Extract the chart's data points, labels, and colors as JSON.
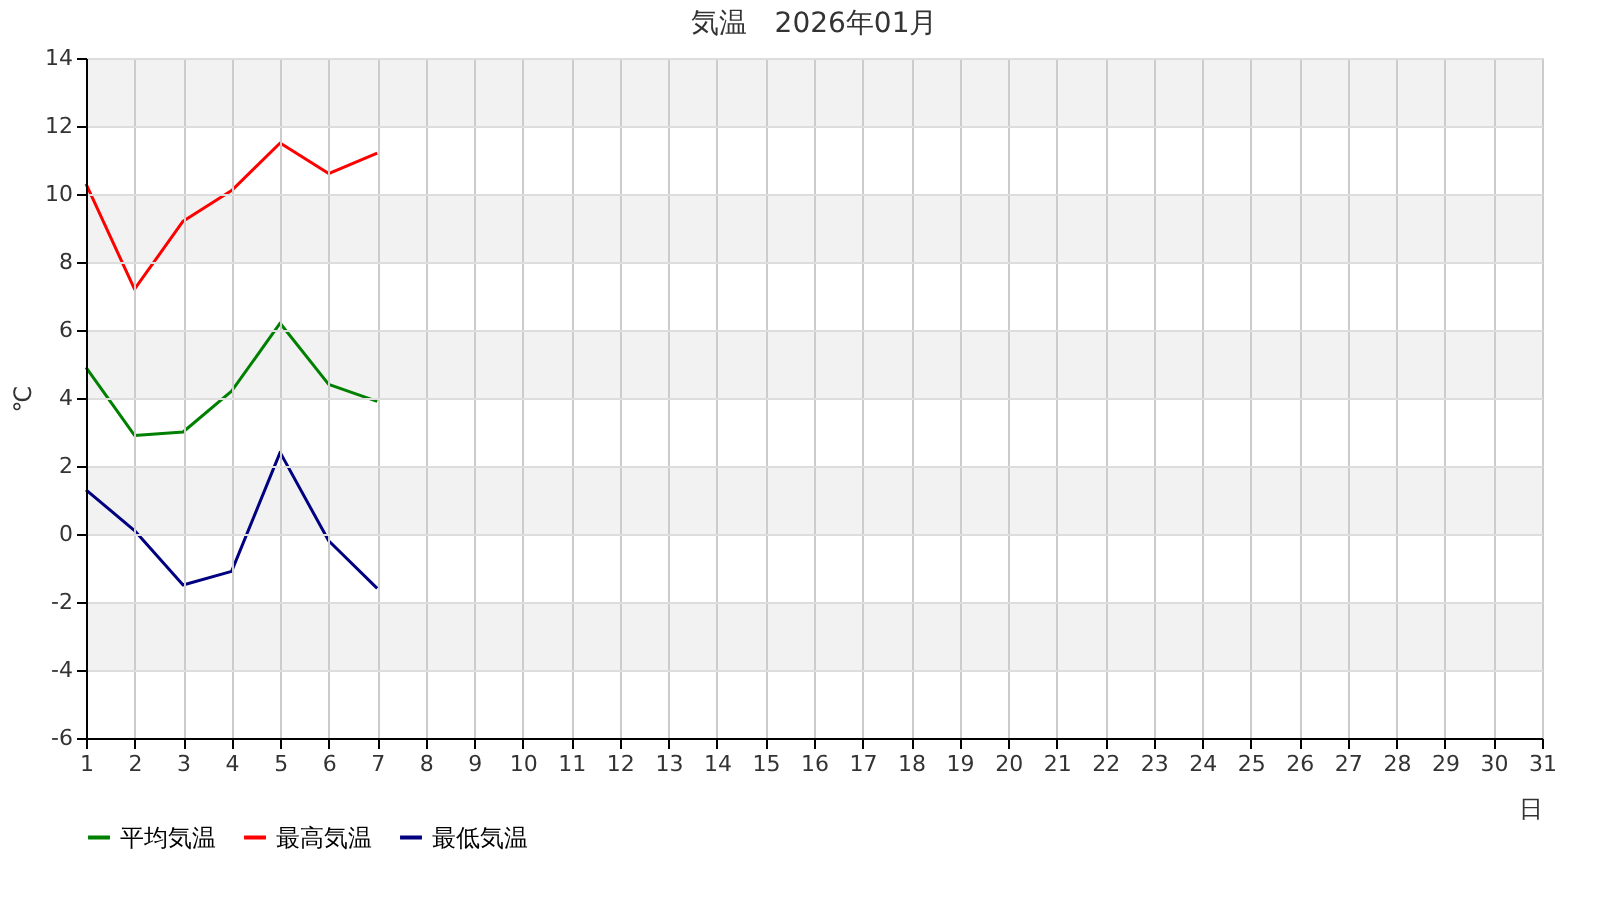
{
  "chart_data": {
    "type": "line",
    "title": "気温　2026年01月",
    "xlabel": "日",
    "ylabel": "℃",
    "x": [
      1,
      2,
      3,
      4,
      5,
      6,
      7
    ],
    "series": [
      {
        "name": "平均気温",
        "color": "#008000",
        "values": [
          4.9,
          2.9,
          3.0,
          4.2,
          6.2,
          4.4,
          3.9
        ]
      },
      {
        "name": "最高気温",
        "color": "#ff0000",
        "values": [
          10.3,
          7.2,
          9.2,
          10.1,
          11.5,
          10.6,
          11.2
        ]
      },
      {
        "name": "最低気温",
        "color": "#000080",
        "values": [
          1.3,
          0.1,
          -1.5,
          -1.1,
          2.4,
          -0.2,
          -1.6
        ]
      }
    ],
    "xlim": [
      1,
      31
    ],
    "xticks": [
      1,
      2,
      3,
      4,
      5,
      6,
      7,
      8,
      9,
      10,
      11,
      12,
      13,
      14,
      15,
      16,
      17,
      18,
      19,
      20,
      21,
      22,
      23,
      24,
      25,
      26,
      27,
      28,
      29,
      30,
      31
    ],
    "ylim": [
      -6,
      14
    ],
    "yticks": [
      -6,
      -4,
      -2,
      0,
      2,
      4,
      6,
      8,
      10,
      12,
      14
    ],
    "bands": [
      {
        "axis": "y",
        "from": 12,
        "to": 14,
        "color": "#f2f2f2"
      },
      {
        "axis": "y",
        "from": 8,
        "to": 10,
        "color": "#f2f2f2"
      },
      {
        "axis": "y",
        "from": 4,
        "to": 6,
        "color": "#f2f2f2"
      },
      {
        "axis": "y",
        "from": 0,
        "to": 2,
        "color": "#f2f2f2"
      },
      {
        "axis": "y",
        "from": -4,
        "to": -2,
        "color": "#f2f2f2"
      }
    ],
    "grid": true,
    "legend": "bottom",
    "marker": "none",
    "line_style": "solid"
  }
}
